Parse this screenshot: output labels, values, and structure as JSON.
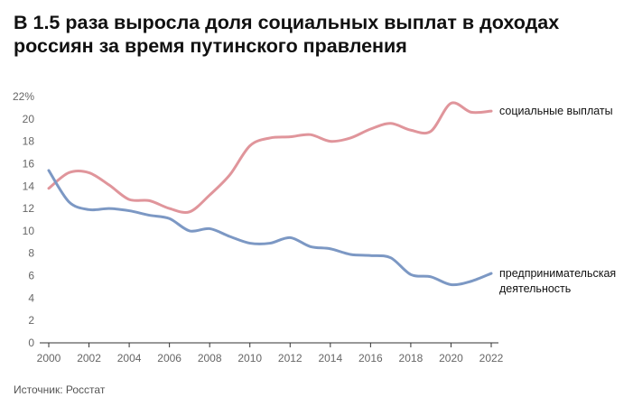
{
  "title": "В 1.5 раза выросла доля социальных выплат в доходах россиян за время путинского правления",
  "source": "Источник: Росстат",
  "chart_data": {
    "type": "line",
    "title": "В 1.5 раза выросла доля социальных выплат в доходах россиян за время путинского правления",
    "xlabel": "",
    "ylabel": "",
    "xlim": [
      2000,
      2022
    ],
    "ylim": [
      0,
      22
    ],
    "y_unit": "%",
    "grid": false,
    "x_ticks": [
      "2000",
      "2002",
      "2004",
      "2006",
      "2008",
      "2010",
      "2012",
      "2014",
      "2016",
      "2018",
      "2020",
      "2022"
    ],
    "y_ticks": [
      "0",
      "2",
      "4",
      "6",
      "8",
      "10",
      "12",
      "14",
      "16",
      "18",
      "20",
      "22%"
    ],
    "x": [
      2000,
      2001,
      2002,
      2003,
      2004,
      2005,
      2006,
      2007,
      2008,
      2009,
      2010,
      2011,
      2012,
      2013,
      2014,
      2015,
      2016,
      2017,
      2018,
      2019,
      2020,
      2021,
      2022
    ],
    "series": [
      {
        "name": "социальные выплаты",
        "label_lines": [
          "социальные выплаты"
        ],
        "color": "#e0959b",
        "values": [
          13.8,
          15.2,
          15.2,
          14.1,
          12.8,
          12.7,
          12.0,
          11.7,
          13.2,
          15.0,
          17.6,
          18.3,
          18.4,
          18.6,
          18.0,
          18.3,
          19.1,
          19.6,
          19.0,
          18.9,
          21.4,
          20.6,
          20.7
        ]
      },
      {
        "name": "предпринимательская деятельность",
        "label_lines": [
          "предпринимательская",
          "деятельность"
        ],
        "color": "#7c98c4",
        "values": [
          15.4,
          12.6,
          11.9,
          12.0,
          11.8,
          11.4,
          11.1,
          10.0,
          10.2,
          9.5,
          8.9,
          8.9,
          9.4,
          8.6,
          8.4,
          7.9,
          7.8,
          7.6,
          6.1,
          5.9,
          5.2,
          5.5,
          6.2
        ]
      }
    ]
  }
}
